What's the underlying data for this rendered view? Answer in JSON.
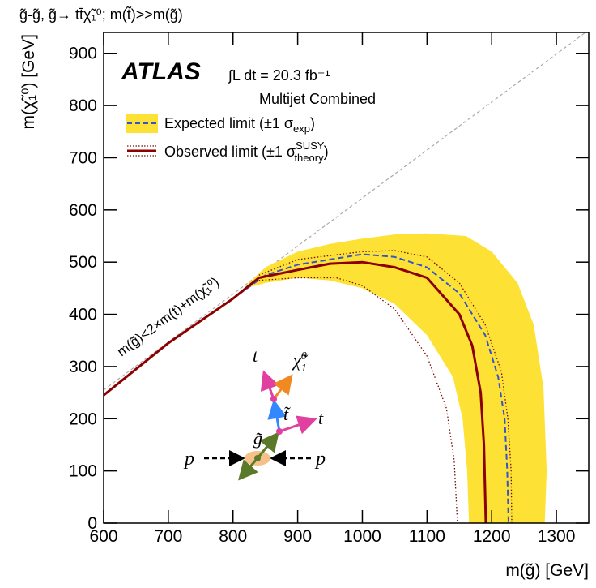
{
  "chart_data": {
    "type": "line",
    "title": "g̃-g̃, g̃→ tt̄χ̃₁⁰; m(t̃)>>m(g̃)",
    "x_label": "m(g̃) [GeV]",
    "y_label": "m(χ̃₁⁰) [GeV]",
    "experiment": "ATLAS",
    "luminosity": "∫L dt = 20.3 fb⁻¹",
    "analysis": "Multijet Combined",
    "xlim": [
      600,
      1350
    ],
    "ylim": [
      0,
      940
    ],
    "xticks": [
      600,
      700,
      800,
      900,
      1000,
      1100,
      1200,
      1300
    ],
    "yticks": [
      0,
      100,
      200,
      300,
      400,
      500,
      600,
      700,
      800,
      900
    ],
    "legend": [
      {
        "label": "Expected limit (±1 σ",
        "sub": "exp",
        "end": ")"
      },
      {
        "label": "Observed limit (±1 σ",
        "sup": "SUSY",
        "sub": "theory",
        "end": ")"
      }
    ],
    "kinematic_limit": {
      "label": "m(g̃)<2×m(t)+m(χ̃₁⁰)",
      "color": "#aaaaaa",
      "x": [
        600,
        1345
      ],
      "values": [
        255,
        940
      ]
    },
    "series": [
      {
        "style": "band",
        "color": "#fde135",
        "x": [
          820,
          850,
          900,
          950,
          1000,
          1050,
          1100,
          1160,
          1200,
          1240,
          1265,
          1280,
          1285,
          1282,
          1165,
          1162,
          1155,
          1140,
          1100,
          1050,
          1000,
          950,
          900,
          850,
          820
        ],
        "values": [
          455,
          490,
          520,
          535,
          545,
          553,
          555,
          550,
          520,
          460,
          380,
          260,
          100,
          0,
          0,
          100,
          200,
          280,
          360,
          420,
          450,
          465,
          470,
          460,
          450
        ]
      },
      {
        "style": "dotted",
        "color": "#7a0a0a",
        "x": [
          840,
          900,
          1000,
          1050,
          1100,
          1150,
          1190,
          1215,
          1225,
          1230,
          1231
        ],
        "values": [
          475,
          505,
          520,
          522,
          510,
          460,
          380,
          290,
          200,
          100,
          0
        ]
      },
      {
        "style": "dotted",
        "color": "#7a0a0a",
        "x": [
          840,
          900,
          960,
          1000,
          1050,
          1100,
          1130,
          1142,
          1147
        ],
        "values": [
          465,
          470,
          470,
          455,
          410,
          320,
          220,
          120,
          0
        ]
      },
      {
        "style": "dashed",
        "color": "#3355cc",
        "x": [
          600,
          700,
          800,
          850,
          900,
          1000,
          1050,
          1100,
          1150,
          1190,
          1210,
          1220,
          1224,
          1226
        ],
        "values": [
          245,
          345,
          430,
          475,
          495,
          515,
          510,
          490,
          440,
          360,
          280,
          200,
          100,
          0
        ]
      },
      {
        "style": "solid",
        "color": "#8b0000",
        "x": [
          600,
          700,
          800,
          840,
          900,
          950,
          1000,
          1050,
          1100,
          1150,
          1170,
          1183,
          1188,
          1190,
          1191
        ],
        "values": [
          245,
          345,
          430,
          470,
          485,
          497,
          500,
          490,
          470,
          400,
          340,
          250,
          150,
          50,
          0
        ]
      }
    ],
    "diagram": {
      "t_top": "t",
      "neutralino": "χ̃",
      "neutralino_sub": "1",
      "neutralino_sup": "0",
      "stop": "t̃",
      "t_right": "t",
      "gluino": "g̃",
      "p_left": "p",
      "p_right": "p"
    }
  }
}
